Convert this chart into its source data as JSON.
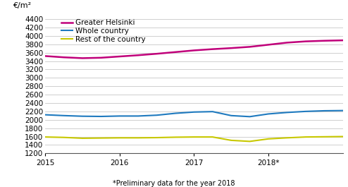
{
  "ylabel": "€/m²",
  "footnote": "*Preliminary data for the year 2018",
  "ylim": [
    1200,
    4500
  ],
  "yticks": [
    1200,
    1400,
    1600,
    1800,
    2000,
    2200,
    2400,
    2600,
    2800,
    3000,
    3200,
    3400,
    3600,
    3800,
    4000,
    4200,
    4400
  ],
  "xtick_labels": [
    "2015",
    "2016",
    "2017",
    "2018*"
  ],
  "series": [
    {
      "label": "Greater Helsinki",
      "color": "#c0007a",
      "linewidth": 1.8,
      "x": [
        0,
        1,
        2,
        3,
        4,
        5,
        6,
        7,
        8,
        9,
        10,
        11,
        12,
        13,
        14,
        15,
        16
      ],
      "y": [
        3520,
        3490,
        3470,
        3480,
        3510,
        3540,
        3575,
        3615,
        3655,
        3685,
        3710,
        3740,
        3790,
        3840,
        3870,
        3885,
        3895
      ]
    },
    {
      "label": "Whole country",
      "color": "#1f7abf",
      "linewidth": 1.5,
      "x": [
        0,
        1,
        2,
        3,
        4,
        5,
        6,
        7,
        8,
        9,
        10,
        11,
        12,
        13,
        14,
        15,
        16
      ],
      "y": [
        2120,
        2100,
        2085,
        2080,
        2090,
        2090,
        2110,
        2155,
        2185,
        2195,
        2100,
        2075,
        2140,
        2175,
        2200,
        2215,
        2220
      ]
    },
    {
      "label": "Rest of the country",
      "color": "#c8c800",
      "linewidth": 1.5,
      "x": [
        0,
        1,
        2,
        3,
        4,
        5,
        6,
        7,
        8,
        9,
        10,
        11,
        12,
        13,
        14,
        15,
        16
      ],
      "y": [
        1590,
        1580,
        1560,
        1565,
        1570,
        1570,
        1575,
        1585,
        1590,
        1590,
        1510,
        1485,
        1545,
        1570,
        1590,
        1595,
        1600
      ]
    }
  ],
  "xtick_positions": [
    0,
    4,
    8,
    12
  ],
  "background_color": "#ffffff",
  "grid_color": "#c8c8c8",
  "legend_fontsize": 7.5,
  "axis_fontsize": 7.5,
  "ylabel_fontsize": 8
}
